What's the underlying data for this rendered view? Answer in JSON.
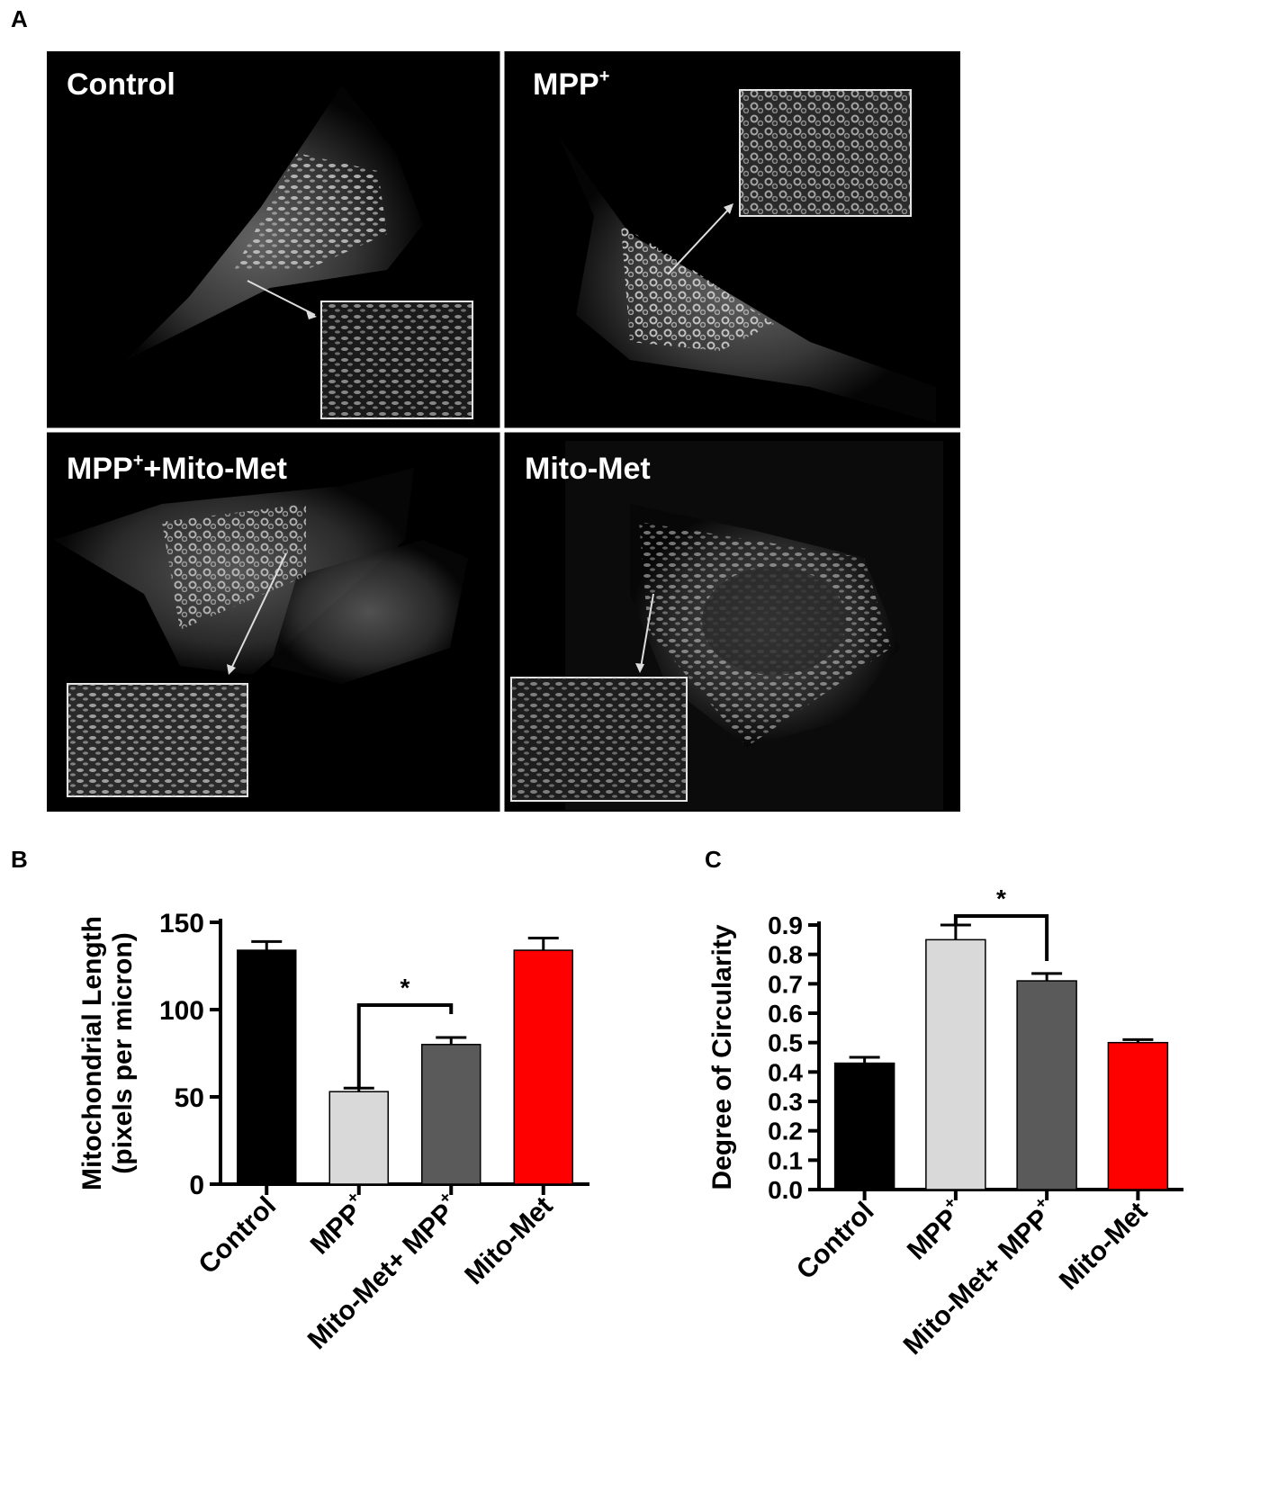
{
  "panels": {
    "a": "A",
    "b": "B",
    "c": "C"
  },
  "micrographs": [
    {
      "label": "Control",
      "sup": ""
    },
    {
      "label": "MPP",
      "sup": "+"
    },
    {
      "label": "MPP",
      "sup": "+",
      "suffix": "+Mito-Met"
    },
    {
      "label": "Mito-Met",
      "sup": ""
    }
  ],
  "chart_data": [
    {
      "type": "bar",
      "panel": "B",
      "categories": [
        "Control",
        "MPP+",
        "Mito-Met+ MPP+",
        "Mito-Met"
      ],
      "category_display": [
        {
          "text": "Control",
          "sup": ""
        },
        {
          "text": "MPP",
          "sup": "+"
        },
        {
          "text": "Mito-Met+ MPP",
          "sup": "+"
        },
        {
          "text": "Mito-Met",
          "sup": ""
        }
      ],
      "values": [
        134,
        53,
        80,
        134
      ],
      "errors": [
        5,
        2,
        4,
        7
      ],
      "colors": [
        "#000000",
        "#d9d9d9",
        "#5a5a5a",
        "#ff0000"
      ],
      "ylabel": "Mitochondrial  Length",
      "ylabel2": "(pixels per micron)",
      "ylim": [
        0,
        150
      ],
      "yticks": [
        0,
        50,
        100,
        150
      ],
      "significance": {
        "from": 1,
        "to": 2,
        "label": "*"
      }
    },
    {
      "type": "bar",
      "panel": "C",
      "categories": [
        "Control",
        "MPP+",
        "Mito-Met+ MPP+",
        "Mito-Met"
      ],
      "category_display": [
        {
          "text": "Control",
          "sup": ""
        },
        {
          "text": "MPP",
          "sup": "+"
        },
        {
          "text": "Mito-Met+ MPP",
          "sup": "+"
        },
        {
          "text": "Mito-Met",
          "sup": ""
        }
      ],
      "values": [
        0.43,
        0.85,
        0.71,
        0.5
      ],
      "errors": [
        0.02,
        0.05,
        0.025,
        0.01
      ],
      "colors": [
        "#000000",
        "#d9d9d9",
        "#5a5a5a",
        "#ff0000"
      ],
      "ylabel": "Degree of Circularity",
      "ylim": [
        0,
        0.9
      ],
      "yticks": [
        "0.0",
        "0.1",
        "0.2",
        "0.3",
        "0.4",
        "0.5",
        "0.6",
        "0.7",
        "0.8",
        "0.9"
      ],
      "significance": {
        "from": 1,
        "to": 2,
        "label": "*"
      }
    }
  ]
}
